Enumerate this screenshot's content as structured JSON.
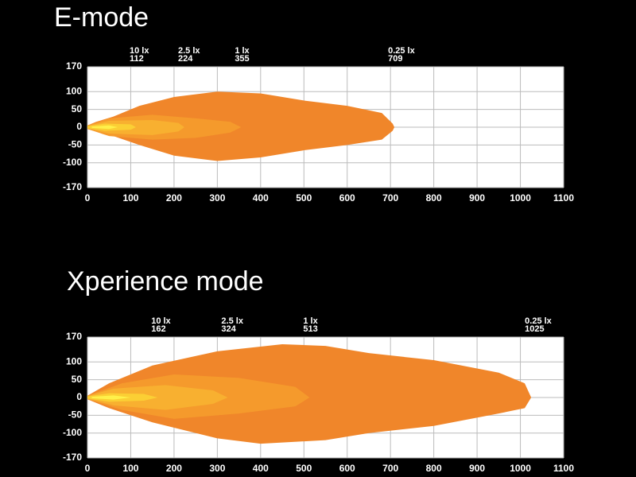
{
  "chart_data": [
    {
      "type": "contour",
      "title": "E-mode",
      "xlim": [
        0,
        1100
      ],
      "ylim": [
        -170,
        170
      ],
      "xticks": [
        0,
        100,
        200,
        300,
        400,
        500,
        600,
        700,
        800,
        900,
        1000,
        1100
      ],
      "yticks": [
        -170,
        -100,
        -50,
        0,
        50,
        100,
        170
      ],
      "grid": true,
      "annotations": [
        {
          "label": "10 lx",
          "value": 112
        },
        {
          "label": "2.5 lx",
          "value": 224
        },
        {
          "label": "1 lx",
          "value": 355
        },
        {
          "label": "0.25 lx",
          "value": 709
        }
      ],
      "series": [
        {
          "color": "#f0862a",
          "x": [
            0,
            20,
            60,
            120,
            200,
            300,
            400,
            500,
            600,
            680,
            705,
            709,
            705,
            680,
            600,
            500,
            400,
            300,
            200,
            120,
            60,
            20,
            0
          ],
          "y": [
            5,
            15,
            30,
            60,
            85,
            100,
            95,
            75,
            60,
            40,
            10,
            0,
            -10,
            -35,
            -50,
            -65,
            -85,
            -95,
            -80,
            -50,
            -25,
            -12,
            -5
          ]
        },
        {
          "color": "#f59a2c",
          "x": [
            0,
            50,
            150,
            250,
            330,
            355,
            330,
            250,
            150,
            50,
            0
          ],
          "y": [
            5,
            25,
            35,
            25,
            15,
            0,
            -15,
            -30,
            -35,
            -25,
            -5
          ]
        },
        {
          "color": "#f8b030",
          "x": [
            0,
            50,
            150,
            210,
            224,
            210,
            150,
            50,
            0
          ],
          "y": [
            4,
            18,
            20,
            12,
            0,
            -12,
            -22,
            -18,
            -4
          ]
        },
        {
          "color": "#fbcf34",
          "x": [
            0,
            40,
            100,
            112,
            100,
            40,
            0
          ],
          "y": [
            3,
            10,
            8,
            0,
            -7,
            -10,
            -3
          ]
        },
        {
          "color": "#fff04a",
          "x": [
            10,
            50,
            70,
            50,
            10
          ],
          "y": [
            2,
            5,
            0,
            -5,
            -2
          ]
        }
      ]
    },
    {
      "type": "contour",
      "title": "Xperience mode",
      "xlim": [
        0,
        1100
      ],
      "ylim": [
        -170,
        170
      ],
      "xticks": [
        0,
        100,
        200,
        300,
        400,
        500,
        600,
        700,
        800,
        900,
        1000,
        1100
      ],
      "yticks": [
        -170,
        -100,
        -50,
        0,
        50,
        100,
        170
      ],
      "grid": true,
      "annotations": [
        {
          "label": "10 lx",
          "value": 162
        },
        {
          "label": "2.5 lx",
          "value": 324
        },
        {
          "label": "1 lx",
          "value": 513
        },
        {
          "label": "0.25 lx",
          "value": 1025
        }
      ],
      "series": [
        {
          "color": "#f0862a",
          "x": [
            0,
            50,
            150,
            300,
            450,
            550,
            650,
            800,
            950,
            1010,
            1025,
            1010,
            950,
            800,
            650,
            550,
            400,
            300,
            150,
            50,
            0
          ],
          "y": [
            5,
            40,
            90,
            130,
            150,
            145,
            125,
            105,
            70,
            40,
            0,
            -30,
            -45,
            -80,
            -100,
            -120,
            -130,
            -115,
            -70,
            -30,
            -5
          ]
        },
        {
          "color": "#f59a2c",
          "x": [
            0,
            80,
            200,
            350,
            480,
            513,
            480,
            350,
            200,
            80,
            0
          ],
          "y": [
            5,
            40,
            65,
            55,
            30,
            0,
            -25,
            -45,
            -60,
            -35,
            -5
          ]
        },
        {
          "color": "#f8b030",
          "x": [
            0,
            60,
            180,
            290,
            324,
            290,
            180,
            60,
            0
          ],
          "y": [
            4,
            25,
            35,
            20,
            0,
            -18,
            -35,
            -22,
            -4
          ]
        },
        {
          "color": "#fbcf34",
          "x": [
            0,
            50,
            130,
            162,
            130,
            50,
            0
          ],
          "y": [
            3,
            12,
            10,
            0,
            -9,
            -12,
            -3
          ]
        },
        {
          "color": "#fff04a",
          "x": [
            10,
            60,
            100,
            60,
            10
          ],
          "y": [
            2,
            6,
            0,
            -6,
            -2
          ]
        }
      ]
    }
  ]
}
